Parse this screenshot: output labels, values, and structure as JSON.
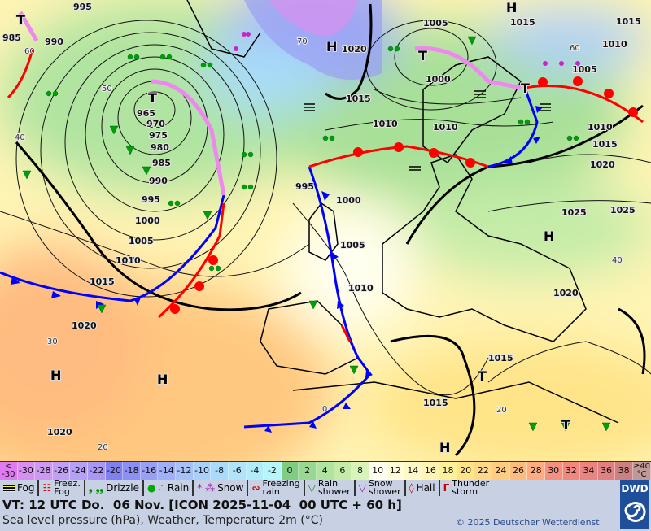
{
  "map": {
    "pressure_labels": [
      "995",
      "985",
      "990",
      "965",
      "970",
      "975",
      "980",
      "985",
      "990",
      "995",
      "1000",
      "1005",
      "1010",
      "1015",
      "1020",
      "1020",
      "1020",
      "1015",
      "1010",
      "1005",
      "1000",
      "1010",
      "1015",
      "1010",
      "1005",
      "1010",
      "1015",
      "1020",
      "1025",
      "1025",
      "995",
      "1000",
      "1005",
      "1010",
      "1020",
      "1015",
      "1015",
      "1015"
    ],
    "lat_labels": [
      "60",
      "50",
      "40",
      "30",
      "20",
      "70",
      "60",
      "40",
      "0",
      "20"
    ],
    "centers": [
      "T",
      "T",
      "T",
      "T",
      "T",
      "H",
      "H",
      "H",
      "H",
      "H",
      "T",
      "H"
    ],
    "colors": {
      "warm_front": "#ff0000",
      "cold_front": "#0000ff",
      "occlusion": "#ee88ee"
    }
  },
  "scale": {
    "unit": "°C",
    "cells": [
      {
        "label": "<\n-30",
        "color": "#e07af0"
      },
      {
        "label": "-30",
        "color": "#d890f0"
      },
      {
        "label": "-28",
        "color": "#cc98f2"
      },
      {
        "label": "-26",
        "color": "#c0a0f4"
      },
      {
        "label": "-24",
        "color": "#b4a0f4"
      },
      {
        "label": "-22",
        "color": "#a898f4"
      },
      {
        "label": "-20",
        "color": "#8080f0"
      },
      {
        "label": "-18",
        "color": "#8c90f4"
      },
      {
        "label": "-16",
        "color": "#98a0f6"
      },
      {
        "label": "-14",
        "color": "#a0b0f8"
      },
      {
        "label": "-12",
        "color": "#a8c0f8"
      },
      {
        "label": "-10",
        "color": "#a8d0fa"
      },
      {
        "label": "-8",
        "color": "#a8dcfa"
      },
      {
        "label": "-6",
        "color": "#b0e4fa"
      },
      {
        "label": "-4",
        "color": "#b0ecfa"
      },
      {
        "label": "-2",
        "color": "#b8f4fc"
      },
      {
        "label": "0",
        "color": "#80cc80"
      },
      {
        "label": "2",
        "color": "#98d890"
      },
      {
        "label": "4",
        "color": "#b0e4a0"
      },
      {
        "label": "6",
        "color": "#c4eca8"
      },
      {
        "label": "8",
        "color": "#d8f4b8"
      },
      {
        "label": "10",
        "color": "#fffff0"
      },
      {
        "label": "12",
        "color": "#fffcd8"
      },
      {
        "label": "14",
        "color": "#fff8c8"
      },
      {
        "label": "16",
        "color": "#fff4b4"
      },
      {
        "label": "18",
        "color": "#fff09a"
      },
      {
        "label": "20",
        "color": "#ffe488"
      },
      {
        "label": "22",
        "color": "#ffd888"
      },
      {
        "label": "24",
        "color": "#ffcc80"
      },
      {
        "label": "26",
        "color": "#ffbc80"
      },
      {
        "label": "28",
        "color": "#ffac80"
      },
      {
        "label": "30",
        "color": "#f49080"
      },
      {
        "label": "32",
        "color": "#f08880"
      },
      {
        "label": "34",
        "color": "#ea8480"
      },
      {
        "label": "36",
        "color": "#e08080"
      },
      {
        "label": "38",
        "color": "#cc8080"
      },
      {
        "label": "≥40\n°C",
        "color": "#c09898"
      }
    ]
  },
  "legend": {
    "fog": "Fog",
    "freezing_fog": "Freez.\nFog",
    "drizzle": "Drizzle",
    "rain": "Rain",
    "snow": "Snow",
    "freezing_rain": "Freezing\nrain",
    "rain_shower": "Rain\nshower",
    "snow_shower": "Snow\nshower",
    "hail": "Hail",
    "thunderstorm": "Thunder\nstorm"
  },
  "footer": {
    "valid_time": "VT: 12 UTC Do.  06 Nov. [ICON 2025-11-04  00 UTC + 60 h]",
    "subtitle": "Sea level pressure (hPa), Weather, Temperature 2m (°C)",
    "copyright": "© 2025 Deutscher Wetterdienst",
    "logo": "DWD"
  }
}
